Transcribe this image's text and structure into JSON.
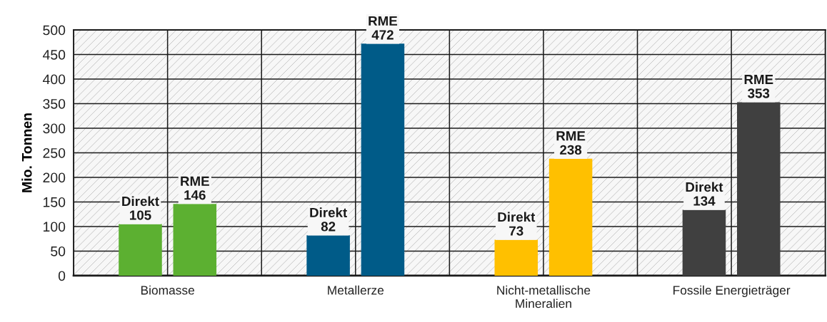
{
  "chart_data": {
    "type": "bar",
    "ylabel": "Mio. Tonnen",
    "categories": [
      "Biomasse",
      "Metallerze",
      "Nicht-metallische\nMineralien",
      "Fossile Energieträger"
    ],
    "series": [
      {
        "name": "Direkt",
        "colors": [
          "#5cb031",
          "#005b88",
          "#ffc000",
          "#404040"
        ],
        "values": [
          105,
          82,
          73,
          134
        ]
      },
      {
        "name": "RME",
        "colors": [
          "#5cb031",
          "#005b88",
          "#ffc000",
          "#404040"
        ],
        "values": [
          146,
          472,
          238,
          353
        ]
      }
    ],
    "ylim": [
      0,
      500
    ],
    "yticks": [
      0,
      50,
      100,
      150,
      200,
      250,
      300,
      350,
      400,
      450,
      500
    ],
    "grid": true,
    "data_labels": true
  }
}
